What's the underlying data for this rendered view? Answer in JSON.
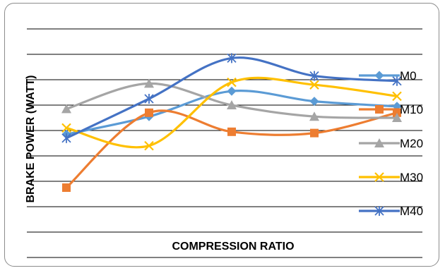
{
  "chart_data": {
    "type": "line",
    "title": "",
    "xlabel": "COMPRESSION RATIO",
    "ylabel": "BRAKE POWER (WATT)",
    "categories": [
      "",
      "",
      "",
      "",
      ""
    ],
    "ylim": [
      0,
      9
    ],
    "grid": true,
    "smooth": true,
    "legend_position": "right",
    "series": [
      {
        "name": "M0",
        "color": "#5B9BD5",
        "marker": "diamond",
        "values": [
          4.85,
          5.55,
          6.55,
          6.15,
          5.95
        ]
      },
      {
        "name": "M10",
        "color": "#ED7D31",
        "marker": "square",
        "values": [
          2.75,
          5.7,
          4.95,
          4.9,
          5.7
        ]
      },
      {
        "name": "M20",
        "color": "#A5A5A5",
        "marker": "triangle",
        "values": [
          5.85,
          6.85,
          6.0,
          5.55,
          5.5
        ]
      },
      {
        "name": "M30",
        "color": "#FFC000",
        "marker": "x",
        "values": [
          5.1,
          4.4,
          6.9,
          6.8,
          6.35
        ]
      },
      {
        "name": "M40",
        "color": "#4472C4",
        "marker": "asterisk",
        "values": [
          4.7,
          6.25,
          7.85,
          7.15,
          6.95
        ]
      }
    ]
  }
}
